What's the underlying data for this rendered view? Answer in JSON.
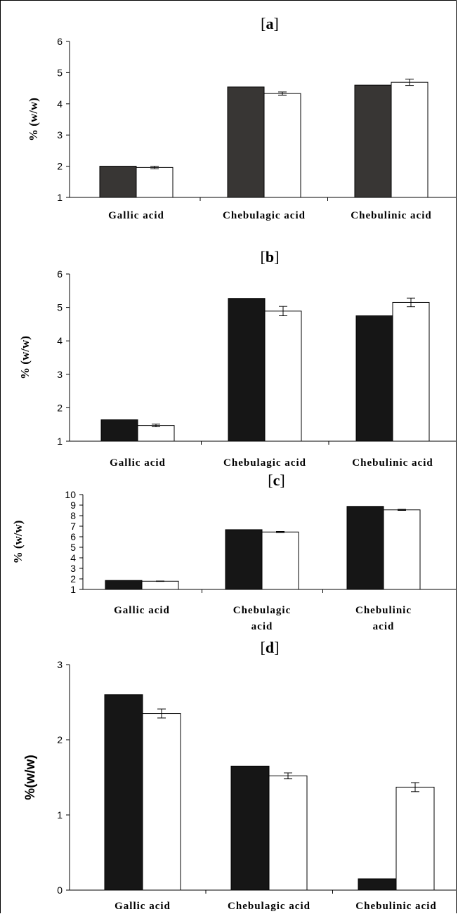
{
  "colors": {
    "series_a_fill": "#383634",
    "series_fill": "#161616",
    "open_fill": "#ffffff",
    "axis": "#000000"
  },
  "chart_data": [
    {
      "type": "bar",
      "title": "[a]",
      "ylabel": "% (w/w)",
      "ylim": [
        1,
        6
      ],
      "yticks": [
        1,
        2,
        3,
        4,
        5,
        6
      ],
      "grid": false,
      "categories": [
        "Gallic acid",
        "Chebulagic acid",
        "Chebulinic acid"
      ],
      "series": [
        {
          "values": [
            2.0,
            4.54,
            4.6
          ]
        },
        {
          "values": [
            1.96,
            4.33,
            4.69
          ],
          "errors": [
            0.04,
            0.05,
            0.1
          ]
        }
      ]
    },
    {
      "type": "bar",
      "title": "[b]",
      "ylabel": "% (w/w)",
      "ylim": [
        1,
        6
      ],
      "yticks": [
        1,
        2,
        3,
        4,
        5,
        6
      ],
      "grid": false,
      "categories": [
        "Gallic acid",
        "Chebulagic acid",
        "Chebulinic acid"
      ],
      "series": [
        {
          "values": [
            1.64,
            5.27,
            4.75
          ]
        },
        {
          "values": [
            1.47,
            4.89,
            5.15
          ],
          "errors": [
            0.04,
            0.14,
            0.13
          ]
        }
      ]
    },
    {
      "type": "bar",
      "title": "[c]",
      "ylabel": "% (w/w)",
      "ylim": [
        1,
        10
      ],
      "yticks": [
        1,
        2,
        3,
        4,
        5,
        6,
        7,
        8,
        9,
        10
      ],
      "grid": false,
      "categories": [
        "Gallic acid",
        "Chebulagic acid",
        "Chebulinic acid"
      ],
      "series": [
        {
          "values": [
            1.85,
            6.67,
            8.88
          ]
        },
        {
          "values": [
            1.78,
            6.45,
            8.55
          ],
          "errors": [
            0.02,
            0.05,
            0.05
          ]
        }
      ]
    },
    {
      "type": "bar",
      "title": "[d]",
      "ylabel": "%(w/w)",
      "ylim": [
        0,
        3
      ],
      "yticks": [
        0,
        1,
        2,
        3
      ],
      "grid": false,
      "categories": [
        "Gallic acid",
        "Chebulagic acid",
        "Chebulinic acid"
      ],
      "series": [
        {
          "values": [
            2.6,
            1.65,
            0.15
          ]
        },
        {
          "values": [
            2.35,
            1.52,
            1.37
          ],
          "errors": [
            0.06,
            0.04,
            0.06
          ]
        }
      ]
    }
  ]
}
